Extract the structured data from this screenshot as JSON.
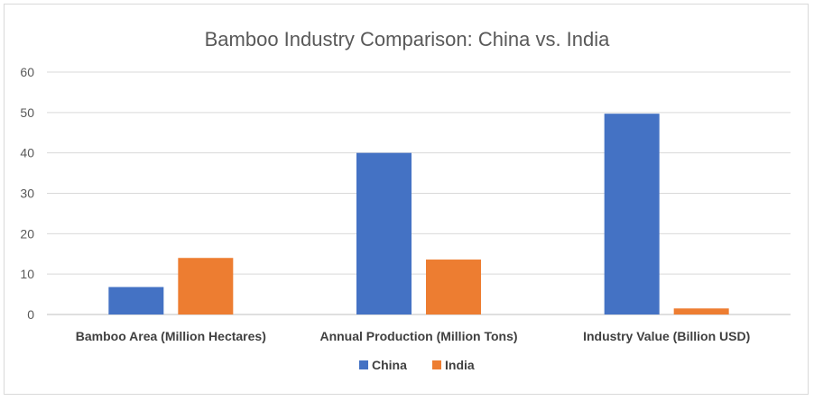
{
  "chart_data": {
    "type": "bar",
    "title": "Bamboo Industry Comparison: China vs. India",
    "xlabel": "",
    "ylabel": "",
    "categories": [
      "Bamboo Area (Million Hectares)",
      "Annual Production (Million Tons)",
      "Industry Value (Billion USD)"
    ],
    "series": [
      {
        "name": "China",
        "values": [
          6.8,
          40,
          49.7
        ],
        "color": "#4472C4"
      },
      {
        "name": "India",
        "values": [
          14,
          13.6,
          1.5
        ],
        "color": "#ED7D31"
      }
    ],
    "ylim": [
      0,
      60
    ],
    "yticks": [
      "0",
      "10",
      "20",
      "30",
      "40",
      "50",
      "60"
    ],
    "grid": true,
    "legend_position": "bottom"
  }
}
